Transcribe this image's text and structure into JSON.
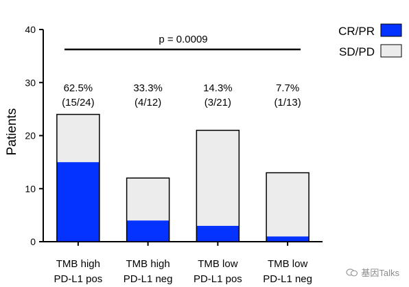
{
  "chart_data": {
    "type": "bar",
    "stacked": true,
    "categories": [
      [
        "TMB high",
        "PD-L1 pos"
      ],
      [
        "TMB high",
        "PD-L1 neg"
      ],
      [
        "TMB low",
        "PD-L1 pos"
      ],
      [
        "TMB low",
        "PD-L1 neg"
      ]
    ],
    "series": [
      {
        "name": "CR/PR",
        "values": [
          15,
          4,
          3,
          1
        ],
        "color": "#0433ff"
      },
      {
        "name": "SD/PD",
        "values": [
          9,
          8,
          18,
          12
        ],
        "color": "#ececec"
      }
    ],
    "ylabel": "Patients",
    "ylim": [
      0,
      40
    ],
    "yticks": [
      0,
      10,
      20,
      30,
      40
    ],
    "annotations": [
      [
        "62.5%",
        "(15/24)"
      ],
      [
        "33.3%",
        "(4/12)"
      ],
      [
        "14.3%",
        "(3/21)"
      ],
      [
        "7.7%",
        "(1/13)"
      ]
    ],
    "p_value_label": "p = 0.0009",
    "legend_position": "top-right",
    "grid": false
  },
  "watermark": {
    "text": "基因Talks",
    "icon": "wechat-icon"
  }
}
